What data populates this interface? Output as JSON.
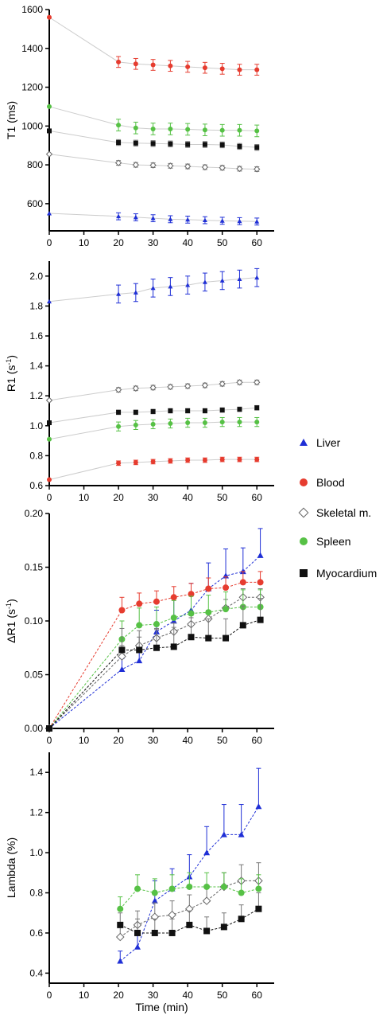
{
  "colors": {
    "Liver": "#1f2fd6",
    "Blood": "#e63c2f",
    "Skeletal m.": "#666666",
    "Spleen": "#56c145",
    "Myocardium": "#111111",
    "axis": "#000000"
  },
  "legend": {
    "entries": [
      "Liver",
      "Blood",
      "Skeletal m.",
      "Spleen",
      "Myocardium"
    ]
  },
  "chart_data": [
    {
      "type": "scatter",
      "title": "",
      "xlabel": "",
      "ylabel": "T1 (ms)",
      "xlim": [
        0,
        65
      ],
      "ylim": [
        460,
        1600
      ],
      "xticks": [
        "0",
        "10",
        "20",
        "30",
        "40",
        "50",
        "60"
      ],
      "yticks": [
        "600",
        "800",
        "1000",
        "1200",
        "1400",
        "1600"
      ],
      "x": [
        0,
        20,
        25,
        30,
        35,
        40,
        45,
        50,
        55,
        60
      ],
      "series": [
        {
          "name": "Blood",
          "values": [
            1560,
            1330,
            1320,
            1315,
            1310,
            1305,
            1300,
            1295,
            1290,
            1290
          ],
          "err": [
            0,
            28,
            28,
            28,
            28,
            28,
            28,
            28,
            28,
            28
          ]
        },
        {
          "name": "Spleen",
          "values": [
            1100,
            1005,
            990,
            985,
            985,
            983,
            980,
            978,
            978,
            975
          ],
          "err": [
            0,
            30,
            30,
            30,
            30,
            30,
            30,
            30,
            30,
            30
          ]
        },
        {
          "name": "Myocardium",
          "values": [
            975,
            915,
            912,
            910,
            908,
            905,
            905,
            903,
            895,
            890
          ],
          "err": [
            0,
            15,
            15,
            15,
            15,
            15,
            15,
            15,
            15,
            15
          ]
        },
        {
          "name": "Skeletal m.",
          "values": [
            855,
            810,
            800,
            798,
            795,
            792,
            788,
            785,
            780,
            778
          ],
          "err": [
            0,
            12,
            12,
            12,
            12,
            12,
            12,
            12,
            12,
            12
          ]
        },
        {
          "name": "Liver",
          "values": [
            550,
            535,
            530,
            525,
            520,
            518,
            515,
            512,
            510,
            508
          ],
          "err": [
            0,
            18,
            18,
            18,
            18,
            18,
            18,
            18,
            18,
            18
          ]
        }
      ]
    },
    {
      "type": "scatter",
      "title": "",
      "xlabel": "",
      "ylabel": "R1 (s-1)",
      "xlim": [
        0,
        65
      ],
      "ylim": [
        0.6,
        2.1
      ],
      "xticks": [
        "0",
        "10",
        "20",
        "30",
        "40",
        "50",
        "60"
      ],
      "yticks": [
        "0.6",
        "0.8",
        "1.0",
        "1.2",
        "1.4",
        "1.6",
        "1.8",
        "2.0"
      ],
      "x": [
        0,
        20,
        25,
        30,
        35,
        40,
        45,
        50,
        55,
        60
      ],
      "series": [
        {
          "name": "Liver",
          "values": [
            1.83,
            1.88,
            1.89,
            1.92,
            1.93,
            1.94,
            1.96,
            1.97,
            1.98,
            1.99
          ],
          "err": [
            0,
            0.06,
            0.06,
            0.06,
            0.06,
            0.06,
            0.06,
            0.06,
            0.06,
            0.06
          ]
        },
        {
          "name": "Skeletal m.",
          "values": [
            1.17,
            1.24,
            1.25,
            1.255,
            1.26,
            1.265,
            1.27,
            1.28,
            1.29,
            1.29
          ],
          "err": [
            0,
            0.015,
            0.015,
            0.015,
            0.015,
            0.015,
            0.015,
            0.015,
            0.015,
            0.015
          ]
        },
        {
          "name": "Myocardium",
          "values": [
            1.02,
            1.09,
            1.09,
            1.095,
            1.1,
            1.1,
            1.1,
            1.105,
            1.11,
            1.12
          ],
          "err": [
            0,
            0.015,
            0.015,
            0.015,
            0.015,
            0.015,
            0.015,
            0.015,
            0.015,
            0.015
          ]
        },
        {
          "name": "Spleen",
          "values": [
            0.91,
            0.995,
            1.005,
            1.01,
            1.015,
            1.02,
            1.02,
            1.025,
            1.025,
            1.025
          ],
          "err": [
            0,
            0.03,
            0.03,
            0.03,
            0.03,
            0.03,
            0.03,
            0.03,
            0.03,
            0.03
          ]
        },
        {
          "name": "Blood",
          "values": [
            0.64,
            0.75,
            0.755,
            0.76,
            0.765,
            0.77,
            0.77,
            0.775,
            0.775,
            0.775
          ],
          "err": [
            0,
            0.015,
            0.015,
            0.015,
            0.015,
            0.015,
            0.015,
            0.015,
            0.015,
            0.015
          ]
        }
      ]
    },
    {
      "type": "line",
      "title": "",
      "xlabel": "",
      "ylabel": "ΔR1 (s-1)",
      "xlim": [
        0,
        65
      ],
      "ylim": [
        0,
        0.2
      ],
      "xticks": [
        "0",
        "10",
        "20",
        "30",
        "40",
        "50",
        "60"
      ],
      "yticks": [
        "0.00",
        "0.05",
        "0.10",
        "0.15",
        "0.20"
      ],
      "x": [
        0,
        21,
        26,
        31,
        36,
        41,
        46,
        51,
        56,
        61
      ],
      "series": [
        {
          "name": "Liver",
          "values": [
            0,
            0.055,
            0.063,
            0.09,
            0.1,
            0.11,
            0.13,
            0.142,
            0.146,
            0.161
          ],
          "err": [
            0,
            0.01,
            0.008,
            0.02,
            0.022,
            0.025,
            0.024,
            0.025,
            0.022,
            0.025
          ]
        },
        {
          "name": "Blood",
          "values": [
            0,
            0.11,
            0.116,
            0.118,
            0.122,
            0.125,
            0.13,
            0.131,
            0.136,
            0.136
          ],
          "err": [
            0,
            0.012,
            0.01,
            0.01,
            0.01,
            0.01,
            0.01,
            0.01,
            0.01,
            0.01
          ]
        },
        {
          "name": "Skeletal m.",
          "values": [
            0,
            0.067,
            0.077,
            0.084,
            0.09,
            0.097,
            0.102,
            0.112,
            0.122,
            0.122
          ],
          "err": [
            0,
            0.01,
            0.008,
            0.008,
            0.008,
            0.008,
            0.008,
            0.008,
            0.008,
            0.008
          ]
        },
        {
          "name": "Spleen",
          "values": [
            0,
            0.083,
            0.096,
            0.097,
            0.103,
            0.107,
            0.108,
            0.111,
            0.113,
            0.113
          ],
          "err": [
            0,
            0.017,
            0.016,
            0.016,
            0.016,
            0.016,
            0.016,
            0.016,
            0.016,
            0.016
          ]
        },
        {
          "name": "Myocardium",
          "values": [
            0,
            0.073,
            0.073,
            0.075,
            0.076,
            0.085,
            0.084,
            0.084,
            0.096,
            0.101
          ],
          "err": [
            0,
            0.02,
            0.018,
            0.018,
            0.018,
            0.018,
            0.018,
            0.018,
            0.018,
            0.02
          ]
        }
      ]
    },
    {
      "type": "line",
      "title": "",
      "xlabel": "Time (min)",
      "ylabel": "Lambda (%)",
      "xlim": [
        0,
        65
      ],
      "ylim": [
        0.35,
        1.5
      ],
      "xticks": [
        "0",
        "10",
        "20",
        "30",
        "40",
        "50",
        "60"
      ],
      "yticks": [
        "0.4",
        "0.6",
        "0.8",
        "1.0",
        "1.2",
        "1.4"
      ],
      "x": [
        20.5,
        25.5,
        30.5,
        35.5,
        40.5,
        45.5,
        50.5,
        55.5,
        60.5
      ],
      "series": [
        {
          "name": "Liver",
          "values": [
            0.46,
            0.53,
            0.76,
            0.82,
            0.88,
            1.0,
            1.09,
            1.09,
            1.23
          ],
          "err": [
            0.05,
            0.08,
            0.1,
            0.1,
            0.11,
            0.13,
            0.15,
            0.15,
            0.19
          ]
        },
        {
          "name": "Skeletal m.",
          "values": [
            0.58,
            0.64,
            0.68,
            0.69,
            0.72,
            0.76,
            0.83,
            0.86,
            0.86
          ],
          "err": [
            0.05,
            0.07,
            0.07,
            0.07,
            0.07,
            0.07,
            0.07,
            0.08,
            0.09
          ]
        },
        {
          "name": "Spleen",
          "values": [
            0.72,
            0.82,
            0.8,
            0.82,
            0.83,
            0.83,
            0.83,
            0.8,
            0.82
          ],
          "err": [
            0.06,
            0.07,
            0.07,
            0.07,
            0.07,
            0.07,
            0.07,
            0.07,
            0.07
          ]
        },
        {
          "name": "Myocardium",
          "values": [
            0.64,
            0.6,
            0.6,
            0.6,
            0.64,
            0.61,
            0.63,
            0.67,
            0.72
          ],
          "err": [
            0.06,
            0.07,
            0.07,
            0.07,
            0.07,
            0.07,
            0.07,
            0.07,
            0.08
          ]
        }
      ]
    }
  ]
}
